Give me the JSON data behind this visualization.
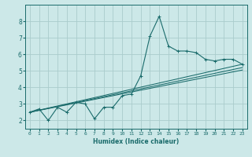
{
  "bg_color": "#cce8e8",
  "grid_color": "#aacccc",
  "line_color": "#1a6b6b",
  "xlabel": "Humidex (Indice chaleur)",
  "ylabel": "",
  "xlim": [
    -0.5,
    23.5
  ],
  "ylim": [
    1.5,
    9.0
  ],
  "xticks": [
    0,
    1,
    2,
    3,
    4,
    5,
    6,
    7,
    8,
    9,
    10,
    11,
    12,
    13,
    14,
    15,
    16,
    17,
    18,
    19,
    20,
    21,
    22,
    23
  ],
  "yticks": [
    2,
    3,
    4,
    5,
    6,
    7,
    8
  ],
  "series": [
    [
      0,
      2.5
    ],
    [
      1,
      2.7
    ],
    [
      2,
      2.0
    ],
    [
      3,
      2.8
    ],
    [
      4,
      2.5
    ],
    [
      5,
      3.1
    ],
    [
      6,
      3.0
    ],
    [
      7,
      2.1
    ],
    [
      8,
      2.8
    ],
    [
      9,
      2.8
    ],
    [
      10,
      3.5
    ],
    [
      11,
      3.6
    ],
    [
      12,
      4.7
    ],
    [
      13,
      7.1
    ],
    [
      14,
      8.3
    ],
    [
      15,
      6.5
    ],
    [
      16,
      6.2
    ],
    [
      17,
      6.2
    ],
    [
      18,
      6.1
    ],
    [
      19,
      5.7
    ],
    [
      20,
      5.6
    ],
    [
      21,
      5.7
    ],
    [
      22,
      5.7
    ],
    [
      23,
      5.4
    ]
  ],
  "line2": [
    [
      0,
      2.5
    ],
    [
      23,
      5.2
    ]
  ],
  "line3": [
    [
      0,
      2.5
    ],
    [
      23,
      5.4
    ]
  ],
  "line4": [
    [
      0,
      2.5
    ],
    [
      23,
      5.05
    ]
  ]
}
